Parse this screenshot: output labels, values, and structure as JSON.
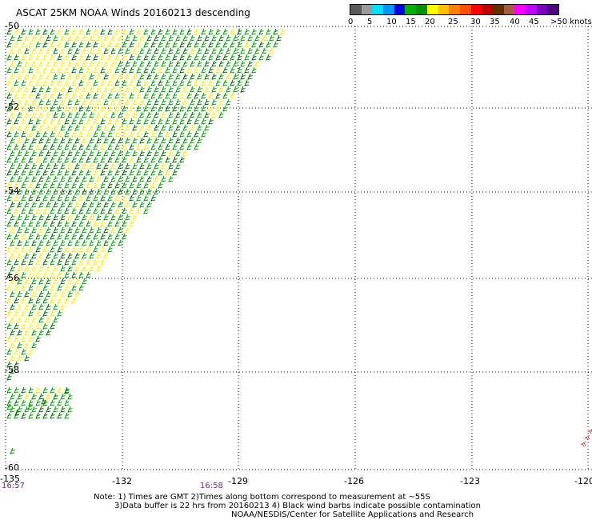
{
  "title": "ASCAT 25KM NOAA Winds 20160213 descending",
  "colorbar": {
    "colors": [
      "#5a5a5a",
      "#9a9a9a",
      "#00e0ff",
      "#0098ff",
      "#0000e0",
      "#00b000",
      "#009000",
      "#ffff00",
      "#ffc000",
      "#ff8000",
      "#ff5000",
      "#ff0000",
      "#c00000",
      "#603000",
      "#a06040",
      "#ff00ff",
      "#c000ff",
      "#8000c0",
      "#500080"
    ],
    "labels": [
      "0",
      "5",
      "10",
      "15",
      "20",
      "25",
      "30",
      "35",
      "40",
      "45",
      ">50 knots"
    ]
  },
  "lat_labels": [
    "-50",
    "-52",
    "-54",
    "-56",
    "-58",
    "-60"
  ],
  "lon_labels": [
    "-135",
    "-132",
    "-129",
    "-126",
    "-123",
    "-120"
  ],
  "times": [
    "16:57",
    "16:58"
  ],
  "notes": [
    "Note: 1) Times are GMT 2)Times along bottom correspond to measurement at ~55S",
    "3)Data buffer is 22 hrs from 20160213 4) Black wind barbs indicate possible contamination",
    "NOAA/NESDIS/Center for Satellite Applications and Research"
  ],
  "barb_colors": {
    "green": "#00a000",
    "dark_green": "#007000",
    "yellow": "#ffee00",
    "red": "#d04040"
  }
}
